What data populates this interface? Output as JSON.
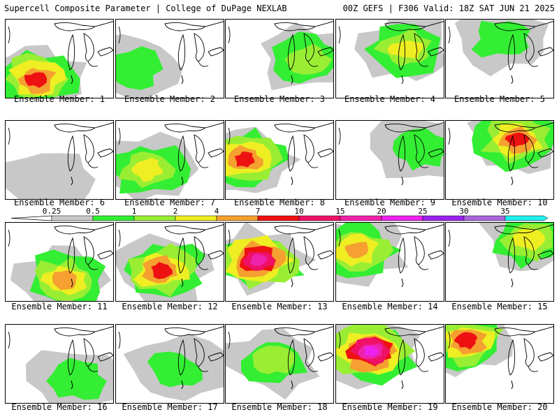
{
  "header": {
    "left": "Supercell Composite Parameter | College of DuPage NEXLAB",
    "right": "00Z GEFS | F306 Valid: 18Z SAT JUN 21 2025"
  },
  "colorbar": {
    "levels": [
      "0.25",
      "0.5",
      "1",
      "2",
      "4",
      "7",
      "10",
      "15",
      "20",
      "25",
      "30",
      "35"
    ],
    "colors": [
      "#c8c8c8",
      "#33ee33",
      "#99ee33",
      "#eeee22",
      "#f5a030",
      "#ee1111",
      "#ee1166",
      "#ee22aa",
      "#ee22ee",
      "#9922ee",
      "#aa66dd",
      "#22eeee"
    ]
  },
  "panels": [
    {
      "label": "Ensemble Member: 1",
      "max_level": 6
    },
    {
      "label": "Ensemble Member: 2",
      "max_level": 2
    },
    {
      "label": "Ensemble Member: 3",
      "max_level": 3
    },
    {
      "label": "Ensemble Member: 4",
      "max_level": 4
    },
    {
      "label": "Ensemble Member: 5",
      "max_level": 2
    },
    {
      "label": "Ensemble Member: 6",
      "max_level": 1
    },
    {
      "label": "Ensemble Member: 7",
      "max_level": 4
    },
    {
      "label": "Ensemble Member: 8",
      "max_level": 6
    },
    {
      "label": "Ensemble Member: 9",
      "max_level": 2
    },
    {
      "label": "Ensemble Member: 10",
      "max_level": 6
    },
    {
      "label": "Ensemble Member: 11",
      "max_level": 5
    },
    {
      "label": "Ensemble Member: 12",
      "max_level": 6
    },
    {
      "label": "Ensemble Member: 13",
      "max_level": 8
    },
    {
      "label": "Ensemble Member: 14",
      "max_level": 5
    },
    {
      "label": "Ensemble Member: 15",
      "max_level": 4
    },
    {
      "label": "Ensemble Member: 16",
      "max_level": 2
    },
    {
      "label": "Ensemble Member: 17",
      "max_level": 2
    },
    {
      "label": "Ensemble Member: 18",
      "max_level": 3
    },
    {
      "label": "Ensemble Member: 19",
      "max_level": 9
    },
    {
      "label": "Ensemble Member: 20",
      "max_level": 6
    }
  ]
}
